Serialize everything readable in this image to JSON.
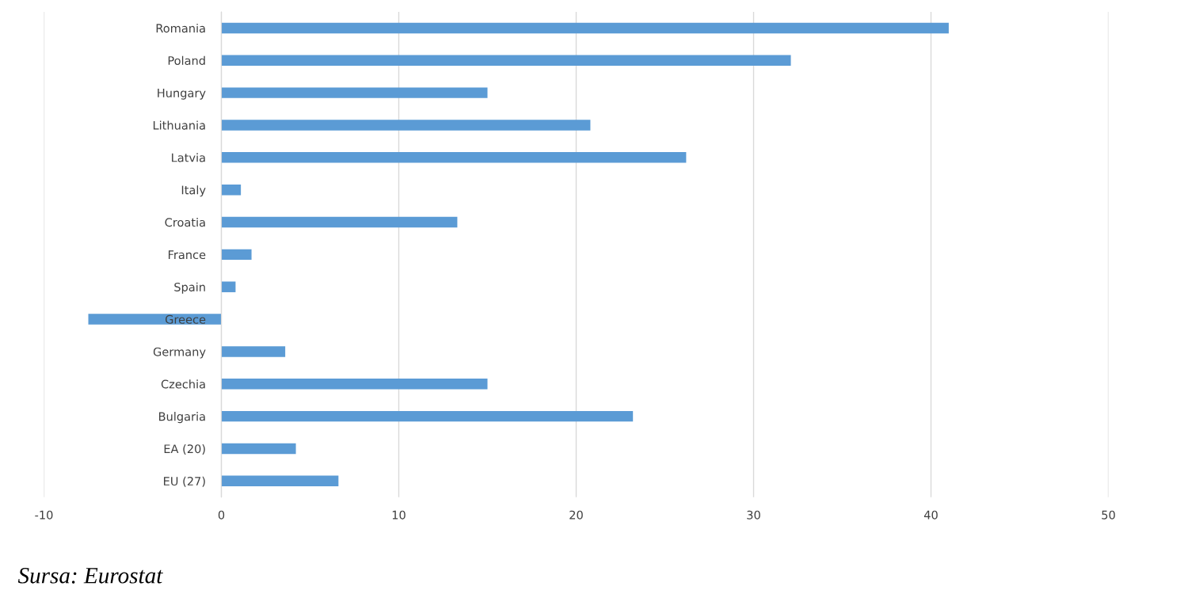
{
  "chart_data": {
    "type": "bar",
    "orientation": "horizontal",
    "categories": [
      "Romania",
      "Poland",
      "Hungary",
      "Lithuania",
      "Latvia",
      "Italy",
      "Croatia",
      "France",
      "Spain",
      "Greece",
      "Germany",
      "Czechia",
      "Bulgaria",
      "EA (20)",
      "EU (27)"
    ],
    "values": [
      41.0,
      32.1,
      15.0,
      20.8,
      26.2,
      1.1,
      13.3,
      1.7,
      0.8,
      -7.5,
      3.6,
      15.0,
      23.2,
      4.2,
      6.6
    ],
    "color": "#5b9bd5",
    "xlim": [
      -10,
      50
    ],
    "xticks": [
      -10,
      0,
      10,
      20,
      30,
      40,
      50
    ],
    "grid": "x",
    "legend": false,
    "annotations": [
      "Sursa: Eurostat"
    ]
  }
}
